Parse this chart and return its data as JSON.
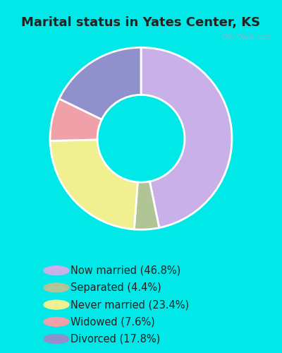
{
  "title": "Marital status in Yates Center, KS",
  "slices": [
    {
      "label": "Now married (46.8%)",
      "value": 46.8,
      "color": "#c9b0e8"
    },
    {
      "label": "Separated (4.4%)",
      "value": 4.4,
      "color": "#b0c496"
    },
    {
      "label": "Never married (23.4%)",
      "value": 23.4,
      "color": "#f0f090"
    },
    {
      "label": "Widowed (7.6%)",
      "value": 7.6,
      "color": "#f0a0a8"
    },
    {
      "label": "Divorced (17.8%)",
      "value": 17.8,
      "color": "#9090cc"
    }
  ],
  "background_outer": "#00e8e8",
  "background_inner_color": "#d8eed8",
  "watermark": "City-Data.com",
  "title_fontsize": 13,
  "title_color": "#222222",
  "legend_fontsize": 10.5,
  "legend_text_color": "#222222",
  "donut_width": 0.52,
  "start_angle": 90
}
